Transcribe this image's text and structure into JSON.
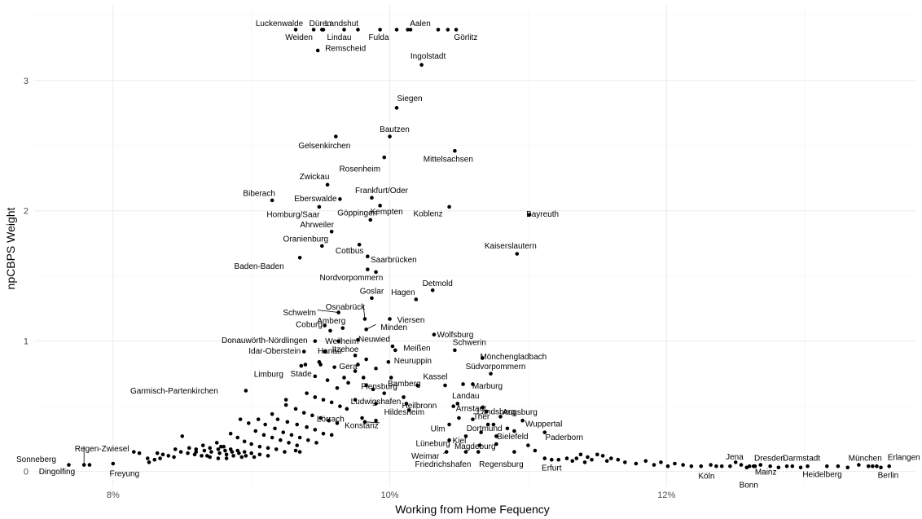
{
  "chart_data": {
    "type": "scatter",
    "xlabel": "Working from Home Fequency",
    "ylabel": "npCBPS Weight",
    "xlim": [
      0.0743,
      0.138
    ],
    "ylim": [
      -0.115,
      3.58
    ],
    "x_ticks": [
      {
        "value": 0.08,
        "label": "8%"
      },
      {
        "value": 0.1,
        "label": "10%"
      },
      {
        "value": 0.12,
        "label": "12%"
      }
    ],
    "y_ticks": [
      {
        "value": 0,
        "label": "0"
      },
      {
        "value": 1,
        "label": "1"
      },
      {
        "value": 2,
        "label": "2"
      },
      {
        "value": 3,
        "label": "3"
      }
    ],
    "grid": true,
    "labeled_points": [
      {
        "name": "Luckenwalde",
        "x": 0.0932,
        "y": 3.39
      },
      {
        "name": "Weiden",
        "x": 0.0945,
        "y": 3.39
      },
      {
        "name": "Düren",
        "x": 0.0951,
        "y": 3.39
      },
      {
        "name": "Lindau",
        "x": 0.0967,
        "y": 3.39
      },
      {
        "name": "Landshut",
        "x": 0.0977,
        "y": 3.39
      },
      {
        "name": "Fulda",
        "x": 0.1005,
        "y": 3.39
      },
      {
        "name": "Aalen",
        "x": 0.1015,
        "y": 3.39
      },
      {
        "name": "Görlitz",
        "x": 0.1042,
        "y": 3.39
      },
      {
        "name": "Remscheid",
        "x": 0.0948,
        "y": 3.23
      },
      {
        "name": "Ingolstadt",
        "x": 0.1023,
        "y": 3.12
      },
      {
        "name": "Siegen",
        "x": 0.1005,
        "y": 2.79
      },
      {
        "name": "Bautzen",
        "x": 0.1,
        "y": 2.57
      },
      {
        "name": "Gelsenkirchen",
        "x": 0.0961,
        "y": 2.57
      },
      {
        "name": "Mittelsachsen",
        "x": 0.1047,
        "y": 2.46
      },
      {
        "name": "Rosenheim",
        "x": 0.0996,
        "y": 2.41
      },
      {
        "name": "Zwickau",
        "x": 0.0955,
        "y": 2.2
      },
      {
        "name": "Biberach",
        "x": 0.0915,
        "y": 2.08
      },
      {
        "name": "Eberswalde",
        "x": 0.0964,
        "y": 2.09
      },
      {
        "name": "Frankfurt/Oder",
        "x": 0.0987,
        "y": 2.1
      },
      {
        "name": "Homburg/Saar",
        "x": 0.0949,
        "y": 2.03
      },
      {
        "name": "Kempten",
        "x": 0.0993,
        "y": 2.04
      },
      {
        "name": "Koblenz",
        "x": 0.1043,
        "y": 2.03
      },
      {
        "name": "Bayreuth",
        "x": 0.1101,
        "y": 1.97
      },
      {
        "name": "Göppingen",
        "x": 0.0986,
        "y": 1.93
      },
      {
        "name": "Ahrweiler",
        "x": 0.0958,
        "y": 1.84
      },
      {
        "name": "Oranienburg",
        "x": 0.0951,
        "y": 1.73
      },
      {
        "name": "Cottbus",
        "x": 0.0978,
        "y": 1.74
      },
      {
        "name": "Kaiserslautern",
        "x": 0.1092,
        "y": 1.67
      },
      {
        "name": "Baden-Baden",
        "x": 0.0935,
        "y": 1.64
      },
      {
        "name": "Saarbrücken",
        "x": 0.0984,
        "y": 1.65
      },
      {
        "name": "Nordvorpommern",
        "x": 0.0984,
        "y": 1.55
      },
      {
        "name": "Detmold",
        "x": 0.1031,
        "y": 1.39
      },
      {
        "name": "Goslar",
        "x": 0.0987,
        "y": 1.33
      },
      {
        "name": "Hagen",
        "x": 0.1019,
        "y": 1.32
      },
      {
        "name": "Schwelm",
        "x": 0.0963,
        "y": 1.22
      },
      {
        "name": "Osnabrück",
        "x": 0.0982,
        "y": 1.17
      },
      {
        "name": "Viersen",
        "x": 0.1,
        "y": 1.17
      },
      {
        "name": "Minden",
        "x": 0.0983,
        "y": 1.09
      },
      {
        "name": "Coburg",
        "x": 0.0957,
        "y": 1.08
      },
      {
        "name": "Amberg",
        "x": 0.0966,
        "y": 1.1
      },
      {
        "name": "Wolfsburg",
        "x": 0.1032,
        "y": 1.05
      },
      {
        "name": "Donauwörth-Nördlingen",
        "x": 0.0946,
        "y": 1.0
      },
      {
        "name": "Weilheim",
        "x": 0.0963,
        "y": 1.0
      },
      {
        "name": "Neuwied",
        "x": 0.0977,
        "y": 1.01
      },
      {
        "name": "Schwerin",
        "x": 0.1047,
        "y": 0.93
      },
      {
        "name": "Idar-Oberstein",
        "x": 0.0938,
        "y": 0.92
      },
      {
        "name": "Hanau",
        "x": 0.0953,
        "y": 0.92
      },
      {
        "name": "Itzehoe",
        "x": 0.0975,
        "y": 0.89
      },
      {
        "name": "Meißen",
        "x": 0.1002,
        "y": 0.96
      },
      {
        "name": "Mönchengladbach",
        "x": 0.1067,
        "y": 0.87
      },
      {
        "name": "Neuruppin",
        "x": 0.0999,
        "y": 0.84
      },
      {
        "name": "Gera",
        "x": 0.0977,
        "y": 0.82
      },
      {
        "name": "Limburg",
        "x": 0.0936,
        "y": 0.81
      },
      {
        "name": "Stade",
        "x": 0.095,
        "y": 0.82
      },
      {
        "name": "Südvorpommern",
        "x": 0.1073,
        "y": 0.75
      },
      {
        "name": "Bamberg",
        "x": 0.1001,
        "y": 0.72
      },
      {
        "name": "Marburg",
        "x": 0.106,
        "y": 0.67
      },
      {
        "name": "Garmisch-Partenkirchen",
        "x": 0.0896,
        "y": 0.62
      },
      {
        "name": "Flensburg",
        "x": 0.0983,
        "y": 0.66
      },
      {
        "name": "Kassel",
        "x": 0.104,
        "y": 0.66
      },
      {
        "name": "Ludwigshafen",
        "x": 0.101,
        "y": 0.57
      },
      {
        "name": "Heilbronn",
        "x": 0.1012,
        "y": 0.52
      },
      {
        "name": "Landau",
        "x": 0.1049,
        "y": 0.52
      },
      {
        "name": "Augsburg",
        "x": 0.108,
        "y": 0.42
      },
      {
        "name": "Arnstadt",
        "x": 0.1067,
        "y": 0.49
      },
      {
        "name": "Landsberg",
        "x": 0.107,
        "y": 0.46
      },
      {
        "name": "Lörrach",
        "x": 0.0969,
        "y": 0.48
      },
      {
        "name": "Hildesheim",
        "x": 0.1014,
        "y": 0.47
      },
      {
        "name": "Wuppertal",
        "x": 0.1096,
        "y": 0.39
      },
      {
        "name": "Konstanz",
        "x": 0.0982,
        "y": 0.38
      },
      {
        "name": "Ulm",
        "x": 0.1043,
        "y": 0.36
      },
      {
        "name": "Trier",
        "x": 0.1071,
        "y": 0.36
      },
      {
        "name": "Paderborn",
        "x": 0.1112,
        "y": 0.3
      },
      {
        "name": "Lüneburg",
        "x": 0.1043,
        "y": 0.24
      },
      {
        "name": "Kiel",
        "x": 0.1055,
        "y": 0.27
      },
      {
        "name": "Dortmund",
        "x": 0.1066,
        "y": 0.3
      },
      {
        "name": "Bielefeld",
        "x": 0.1077,
        "y": 0.27
      },
      {
        "name": "Weimar",
        "x": 0.1041,
        "y": 0.15
      },
      {
        "name": "Magdeburg",
        "x": 0.1064,
        "y": 0.15
      },
      {
        "name": "Friedrichshafen",
        "x": 0.1055,
        "y": 0.15
      },
      {
        "name": "Regensburg",
        "x": 0.109,
        "y": 0.15
      },
      {
        "name": "Erfurt",
        "x": 0.1117,
        "y": 0.09
      },
      {
        "name": "Regen-Zwiesel",
        "x": 0.0779,
        "y": 0.05
      },
      {
        "name": "Sonneberg",
        "x": 0.0768,
        "y": 0.05
      },
      {
        "name": "Dingolfing",
        "x": 0.0783,
        "y": 0.05
      },
      {
        "name": "Freyung",
        "x": 0.08,
        "y": 0.06
      },
      {
        "name": "Jena",
        "x": 0.1254,
        "y": 0.05
      },
      {
        "name": "Köln",
        "x": 0.1236,
        "y": 0.04
      },
      {
        "name": "Dresden",
        "x": 0.1264,
        "y": 0.04
      },
      {
        "name": "Mainz",
        "x": 0.126,
        "y": 0.04
      },
      {
        "name": "Bonn",
        "x": 0.1263,
        "y": 0.04
      },
      {
        "name": "Darmstadt",
        "x": 0.1287,
        "y": 0.04
      },
      {
        "name": "Heidelberg",
        "x": 0.1302,
        "y": 0.04
      },
      {
        "name": "München",
        "x": 0.1346,
        "y": 0.04
      },
      {
        "name": "Berlin",
        "x": 0.1352,
        "y": 0.04
      },
      {
        "name": "Erlangen",
        "x": 0.1361,
        "y": 0.04
      }
    ],
    "unlabeled_points": [
      [
        0.0952,
        3.39
      ],
      [
        0.0993,
        3.39
      ],
      [
        0.1013,
        3.39
      ],
      [
        0.1035,
        3.39
      ],
      [
        0.1048,
        3.39
      ],
      [
        0.099,
        1.53
      ],
      [
        0.0953,
        1.12
      ],
      [
        0.1004,
        0.93
      ],
      [
        0.0939,
        0.82
      ],
      [
        0.0949,
        0.84
      ],
      [
        0.096,
        0.8
      ],
      [
        0.0967,
        0.72
      ],
      [
        0.0975,
        0.77
      ],
      [
        0.0983,
        0.86
      ],
      [
        0.099,
        0.79
      ],
      [
        0.0946,
        0.73
      ],
      [
        0.0955,
        0.7
      ],
      [
        0.0962,
        0.64
      ],
      [
        0.097,
        0.68
      ],
      [
        0.0981,
        0.72
      ],
      [
        0.0988,
        0.63
      ],
      [
        0.0996,
        0.6
      ],
      [
        0.1053,
        0.67
      ],
      [
        0.102,
        0.66
      ],
      [
        0.1046,
        0.5
      ],
      [
        0.094,
        0.6
      ],
      [
        0.0946,
        0.57
      ],
      [
        0.0952,
        0.55
      ],
      [
        0.0958,
        0.53
      ],
      [
        0.0964,
        0.5
      ],
      [
        0.0975,
        0.55
      ],
      [
        0.099,
        0.52
      ],
      [
        0.0925,
        0.55
      ],
      [
        0.0925,
        0.51
      ],
      [
        0.0932,
        0.48
      ],
      [
        0.0938,
        0.45
      ],
      [
        0.0944,
        0.43
      ],
      [
        0.095,
        0.41
      ],
      [
        0.0956,
        0.39
      ],
      [
        0.0962,
        0.37
      ],
      [
        0.0915,
        0.44
      ],
      [
        0.0919,
        0.4
      ],
      [
        0.0926,
        0.38
      ],
      [
        0.0933,
        0.36
      ],
      [
        0.094,
        0.34
      ],
      [
        0.0946,
        0.32
      ],
      [
        0.0952,
        0.29
      ],
      [
        0.0958,
        0.28
      ],
      [
        0.0905,
        0.4
      ],
      [
        0.091,
        0.36
      ],
      [
        0.0917,
        0.33
      ],
      [
        0.0923,
        0.3
      ],
      [
        0.0929,
        0.28
      ],
      [
        0.0935,
        0.26
      ],
      [
        0.0941,
        0.24
      ],
      [
        0.0947,
        0.22
      ],
      [
        0.0892,
        0.4
      ],
      [
        0.0898,
        0.37
      ],
      [
        0.0903,
        0.31
      ],
      [
        0.0909,
        0.28
      ],
      [
        0.0915,
        0.26
      ],
      [
        0.0921,
        0.24
      ],
      [
        0.0927,
        0.22
      ],
      [
        0.0933,
        0.2
      ],
      [
        0.0885,
        0.29
      ],
      [
        0.089,
        0.26
      ],
      [
        0.0895,
        0.23
      ],
      [
        0.09,
        0.21
      ],
      [
        0.0906,
        0.19
      ],
      [
        0.0912,
        0.18
      ],
      [
        0.0918,
        0.17
      ],
      [
        0.0924,
        0.15
      ],
      [
        0.0875,
        0.22
      ],
      [
        0.088,
        0.19
      ],
      [
        0.0885,
        0.17
      ],
      [
        0.089,
        0.16
      ],
      [
        0.0895,
        0.15
      ],
      [
        0.09,
        0.14
      ],
      [
        0.0906,
        0.13
      ],
      [
        0.0912,
        0.12
      ],
      [
        0.0865,
        0.2
      ],
      [
        0.087,
        0.18
      ],
      [
        0.0876,
        0.17
      ],
      [
        0.0881,
        0.16
      ],
      [
        0.0886,
        0.15
      ],
      [
        0.0891,
        0.14
      ],
      [
        0.0896,
        0.12
      ],
      [
        0.0902,
        0.11
      ],
      [
        0.0855,
        0.18
      ],
      [
        0.086,
        0.17
      ],
      [
        0.0866,
        0.16
      ],
      [
        0.0871,
        0.15
      ],
      [
        0.0877,
        0.14
      ],
      [
        0.0882,
        0.13
      ],
      [
        0.0887,
        0.12
      ],
      [
        0.0893,
        0.11
      ],
      [
        0.0845,
        0.17
      ],
      [
        0.0849,
        0.15
      ],
      [
        0.0854,
        0.14
      ],
      [
        0.0859,
        0.13
      ],
      [
        0.0864,
        0.12
      ],
      [
        0.087,
        0.11
      ],
      [
        0.0876,
        0.1
      ],
      [
        0.0882,
        0.1
      ],
      [
        0.0832,
        0.14
      ],
      [
        0.0836,
        0.13
      ],
      [
        0.084,
        0.12
      ],
      [
        0.0844,
        0.11
      ],
      [
        0.0834,
        0.1
      ],
      [
        0.085,
        0.27
      ],
      [
        0.086,
        0.15
      ],
      [
        0.083,
        0.09
      ],
      [
        0.0815,
        0.15
      ],
      [
        0.0819,
        0.14
      ],
      [
        0.0825,
        0.1
      ],
      [
        0.0826,
        0.07
      ],
      [
        0.0868,
        0.12
      ],
      [
        0.0878,
        0.19
      ],
      [
        0.0932,
        0.16
      ],
      [
        0.0935,
        0.15
      ],
      [
        0.098,
        0.41
      ],
      [
        0.099,
        0.39
      ],
      [
        0.105,
        0.41
      ],
      [
        0.106,
        0.4
      ],
      [
        0.1075,
        0.36
      ],
      [
        0.1085,
        0.33
      ],
      [
        0.109,
        0.31
      ],
      [
        0.1065,
        0.2
      ],
      [
        0.1077,
        0.21
      ],
      [
        0.11,
        0.2
      ],
      [
        0.1105,
        0.16
      ],
      [
        0.1112,
        0.1
      ],
      [
        0.1122,
        0.09
      ],
      [
        0.1128,
        0.1
      ],
      [
        0.1132,
        0.08
      ],
      [
        0.1135,
        0.1
      ],
      [
        0.1138,
        0.13
      ],
      [
        0.1141,
        0.07
      ],
      [
        0.1143,
        0.11
      ],
      [
        0.1146,
        0.09
      ],
      [
        0.115,
        0.13
      ],
      [
        0.1154,
        0.12
      ],
      [
        0.1157,
        0.08
      ],
      [
        0.116,
        0.1
      ],
      [
        0.1165,
        0.09
      ],
      [
        0.117,
        0.07
      ],
      [
        0.1178,
        0.06
      ],
      [
        0.1185,
        0.08
      ],
      [
        0.1191,
        0.05
      ],
      [
        0.1196,
        0.07
      ],
      [
        0.1201,
        0.04
      ],
      [
        0.1206,
        0.06
      ],
      [
        0.1212,
        0.05
      ],
      [
        0.1218,
        0.04
      ],
      [
        0.1225,
        0.04
      ],
      [
        0.1232,
        0.05
      ],
      [
        0.124,
        0.04
      ],
      [
        0.1246,
        0.04
      ],
      [
        0.125,
        0.07
      ],
      [
        0.1258,
        0.03
      ],
      [
        0.1268,
        0.05
      ],
      [
        0.1275,
        0.04
      ],
      [
        0.1281,
        0.03
      ],
      [
        0.1291,
        0.04
      ],
      [
        0.1297,
        0.03
      ],
      [
        0.1316,
        0.04
      ],
      [
        0.1324,
        0.04
      ],
      [
        0.1331,
        0.03
      ],
      [
        0.1339,
        0.05
      ],
      [
        0.1349,
        0.04
      ],
      [
        0.1355,
        0.03
      ]
    ]
  }
}
